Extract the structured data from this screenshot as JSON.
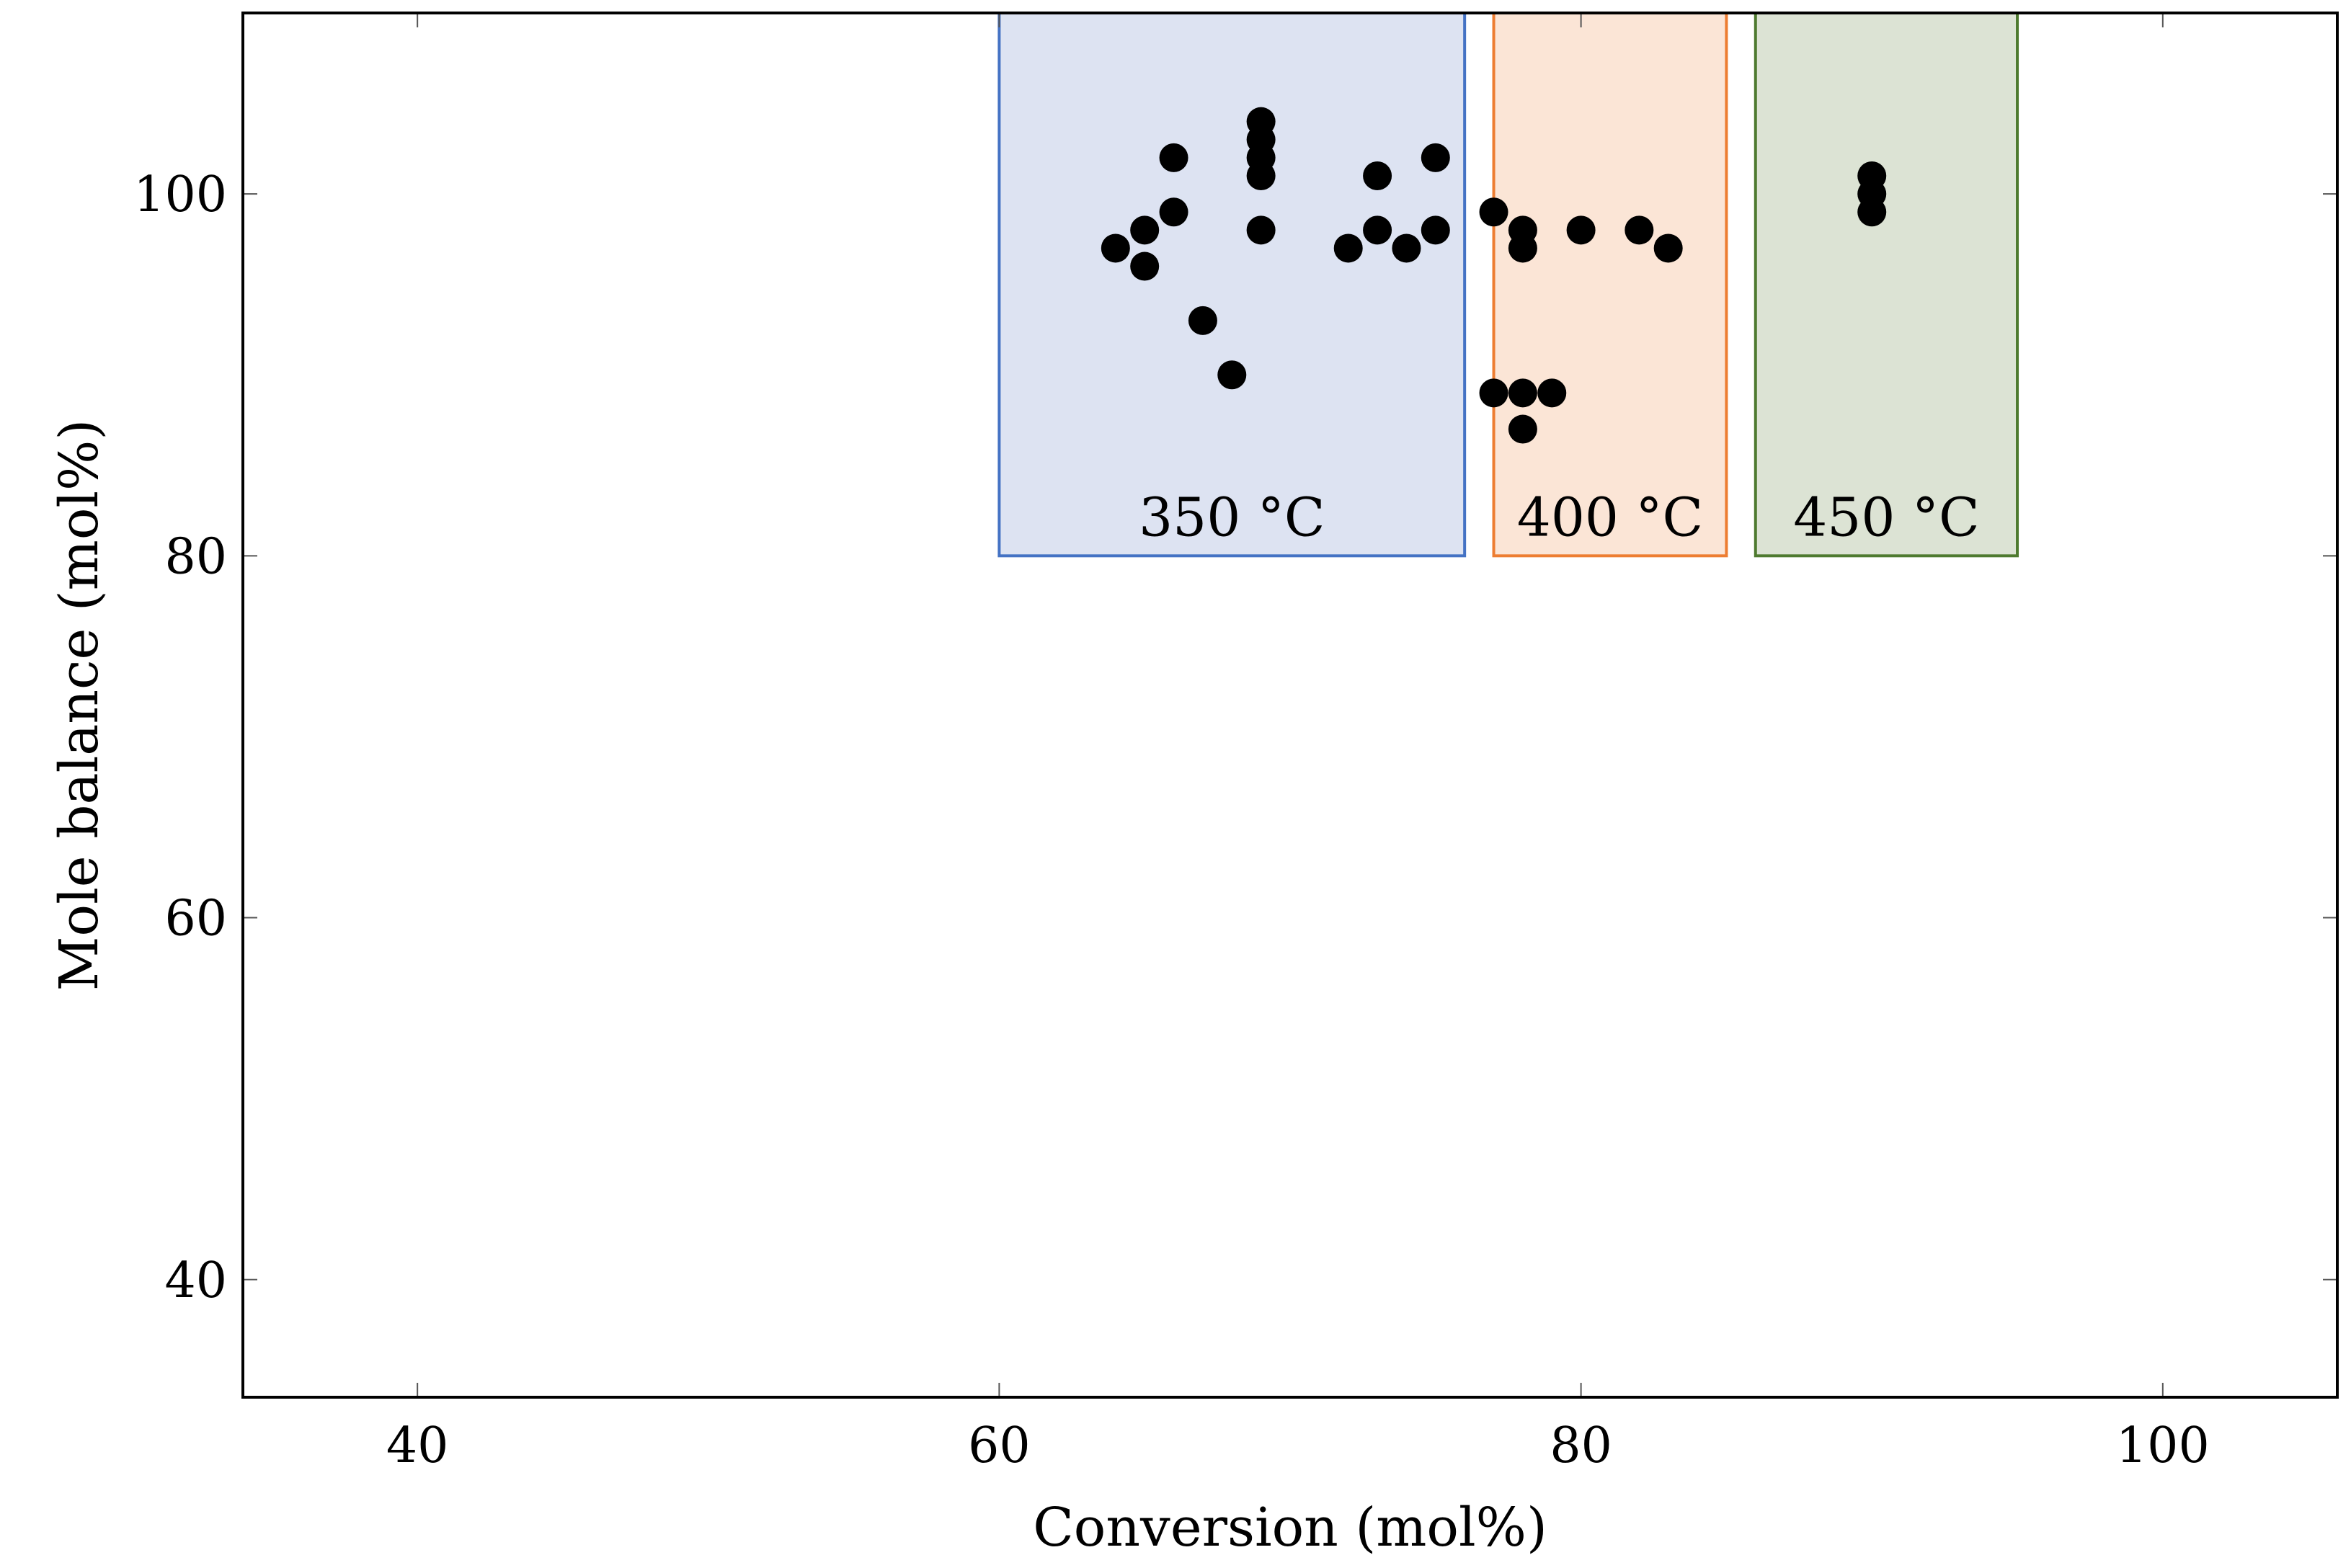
{
  "chart_data": {
    "type": "scatter",
    "title": "",
    "xlabel": "Conversion (mol%)",
    "ylabel": "Mole balance (mol%)",
    "xlim": [
      34,
      106
    ],
    "ylim": [
      33.5,
      110
    ],
    "xticks": [
      40,
      60,
      80,
      100
    ],
    "yticks": [
      40,
      60,
      80,
      100
    ],
    "xtick_labels": [
      "40",
      "60",
      "80",
      "100"
    ],
    "ytick_labels": [
      "40",
      "60",
      "80",
      "100"
    ],
    "grid": false,
    "regions": [
      {
        "label": "350 °C",
        "x": [
          60,
          76
        ],
        "y": [
          80,
          110
        ],
        "fill": "#dde3f2",
        "stroke": "#4472c4"
      },
      {
        "label": "400 °C",
        "x": [
          77,
          85
        ],
        "y": [
          80,
          110
        ],
        "fill": "#fbe5d6",
        "stroke": "#ed7d31"
      },
      {
        "label": "450 °C",
        "x": [
          86,
          95
        ],
        "y": [
          80,
          110
        ],
        "fill": "#dce3d4",
        "stroke": "#4e7a2f"
      }
    ],
    "series": [
      {
        "name": "Mole balance",
        "color": "#000000",
        "points": [
          [
            64,
            97
          ],
          [
            65,
            98
          ],
          [
            65,
            96
          ],
          [
            66,
            102
          ],
          [
            66,
            99
          ],
          [
            67,
            93
          ],
          [
            68,
            90
          ],
          [
            69,
            104
          ],
          [
            69,
            103
          ],
          [
            69,
            102
          ],
          [
            69,
            101
          ],
          [
            69,
            98
          ],
          [
            72,
            97
          ],
          [
            73,
            101
          ],
          [
            73,
            98
          ],
          [
            74,
            97
          ],
          [
            75,
            102
          ],
          [
            75,
            98
          ],
          [
            77,
            99
          ],
          [
            77,
            89
          ],
          [
            78,
            98
          ],
          [
            78,
            97
          ],
          [
            78,
            89
          ],
          [
            78,
            87
          ],
          [
            79,
            89
          ],
          [
            80,
            98
          ],
          [
            82,
            98
          ],
          [
            83,
            97
          ],
          [
            90,
            101
          ],
          [
            90,
            100
          ],
          [
            90,
            99
          ]
        ]
      }
    ]
  }
}
